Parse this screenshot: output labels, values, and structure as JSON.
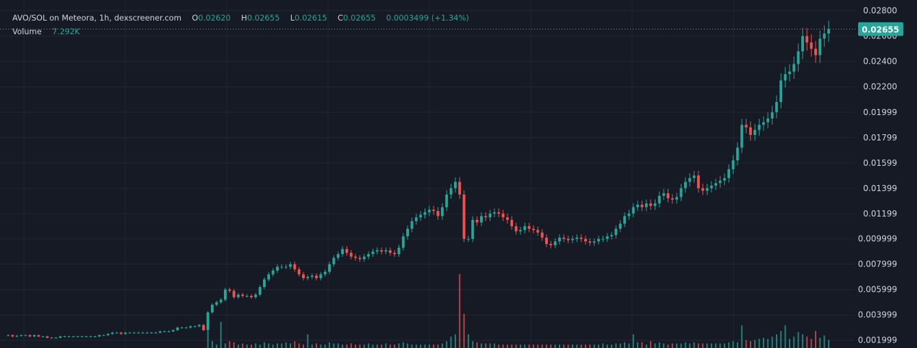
{
  "legend": {
    "symbol": "AVO/SOL on Meteora, 1h, dexscreener.com",
    "o_label": "O",
    "o_value": "0.02620",
    "h_label": "H",
    "h_value": "0.02655",
    "l_label": "L",
    "l_value": "0.02615",
    "c_label": "C",
    "c_value": "0.02655",
    "change": "0.0003499 (+1.34%)",
    "volume_label": "Volume",
    "volume_value": "7.292K"
  },
  "colors": {
    "background": "#161a25",
    "grid": "#232734",
    "up": "#26a69a",
    "down": "#ef5350",
    "text": "#d1d4dc",
    "axis_text": "#d1d4dc",
    "price_tag_bg": "#26a69a",
    "price_tag_text": "#ffffff"
  },
  "chart_data": {
    "type": "candlestick",
    "title": "AVO/SOL on Meteora, 1h, dexscreener.com",
    "y_ticks": [
      "0.02800",
      "0.02600",
      "0.02400",
      "0.02200",
      "0.01999",
      "0.01799",
      "0.01599",
      "0.01399",
      "0.01199",
      "0.009999",
      "0.007999",
      "0.005999",
      "0.003999",
      "0.001999"
    ],
    "y_range": [
      0.00139,
      0.02885
    ],
    "last_price": 0.02655,
    "last_price_label": "0.02655",
    "grid": true,
    "close_series": [
      0.0024,
      0.0023,
      0.00235,
      0.0024,
      0.0024,
      0.0023,
      0.0024,
      0.0023,
      0.0023,
      0.0022,
      0.0022,
      0.0022,
      0.0023,
      0.0023,
      0.0023,
      0.0023,
      0.0023,
      0.0023,
      0.0023,
      0.0023,
      0.0023,
      0.0024,
      0.0024,
      0.0025,
      0.0026,
      0.0026,
      0.0025,
      0.0026,
      0.0026,
      0.0026,
      0.0026,
      0.0026,
      0.0026,
      0.0026,
      0.0026,
      0.0027,
      0.0027,
      0.0027,
      0.0028,
      0.003,
      0.003,
      0.003,
      0.0031,
      0.0031,
      0.0032,
      0.0028,
      0.0042,
      0.0048,
      0.005,
      0.0052,
      0.006,
      0.0059,
      0.0054,
      0.0056,
      0.0055,
      0.0055,
      0.0054,
      0.0056,
      0.0062,
      0.0068,
      0.0072,
      0.0075,
      0.0078,
      0.0078,
      0.0078,
      0.008,
      0.0076,
      0.0072,
      0.0069,
      0.007,
      0.0071,
      0.0069,
      0.0072,
      0.0074,
      0.008,
      0.0085,
      0.0088,
      0.0092,
      0.0089,
      0.0086,
      0.0085,
      0.0084,
      0.0086,
      0.0088,
      0.009,
      0.0091,
      0.009,
      0.0091,
      0.0089,
      0.0088,
      0.0093,
      0.0102,
      0.0108,
      0.0114,
      0.0117,
      0.0119,
      0.0121,
      0.0123,
      0.0122,
      0.0118,
      0.0125,
      0.0135,
      0.014,
      0.0145,
      0.0135,
      0.01,
      0.01,
      0.0115,
      0.0113,
      0.0118,
      0.0117,
      0.012,
      0.0121,
      0.012,
      0.0117,
      0.0115,
      0.011,
      0.0106,
      0.0107,
      0.011,
      0.0108,
      0.0107,
      0.0105,
      0.0101,
      0.0096,
      0.0095,
      0.0098,
      0.0101,
      0.01,
      0.0099,
      0.01,
      0.0101,
      0.01,
      0.0098,
      0.0097,
      0.0098,
      0.01,
      0.01,
      0.0102,
      0.0103,
      0.0108,
      0.0112,
      0.0118,
      0.012,
      0.0125,
      0.0127,
      0.0125,
      0.0128,
      0.0126,
      0.0128,
      0.0134,
      0.0136,
      0.0132,
      0.0131,
      0.0133,
      0.014,
      0.0145,
      0.0148,
      0.015,
      0.014,
      0.0138,
      0.014,
      0.0142,
      0.0144,
      0.0146,
      0.0148,
      0.0155,
      0.0162,
      0.0172,
      0.019,
      0.0188,
      0.0182,
      0.0186,
      0.019,
      0.0192,
      0.0195,
      0.02,
      0.0208,
      0.0225,
      0.023,
      0.0232,
      0.0238,
      0.0248,
      0.026,
      0.0255,
      0.025,
      0.0245,
      0.0258,
      0.0262,
      0.02655
    ],
    "volume_series": [
      0,
      0,
      0,
      0,
      0,
      0,
      0,
      0,
      0,
      0,
      0,
      0,
      0,
      0,
      0,
      0,
      0,
      0,
      0,
      0,
      0,
      0,
      0,
      0,
      0,
      0,
      0,
      0,
      0,
      0,
      0,
      0,
      0,
      0,
      0,
      0,
      0,
      0,
      0,
      0,
      0,
      0,
      0,
      0,
      0,
      0,
      1.5,
      0.6,
      0.3,
      2.3,
      0.4,
      0.6,
      0.5,
      0.3,
      0.4,
      0.3,
      0.3,
      0.4,
      0.3,
      0.5,
      0.4,
      0.3,
      0.4,
      0.4,
      0.5,
      0.4,
      0.6,
      0.4,
      0.3,
      1.2,
      0.3,
      0.4,
      0.3,
      0.3,
      0.5,
      0.4,
      0.4,
      0.3,
      0.3,
      0.4,
      0.3,
      0.3,
      0.3,
      0.4,
      0.3,
      0.3,
      0.3,
      0.4,
      0.3,
      0.3,
      0.4,
      0.5,
      0.4,
      0.3,
      0.3,
      0.3,
      0.3,
      0.3,
      0.3,
      0.3,
      0.4,
      0.6,
      1.0,
      1.2,
      6.5,
      3.0,
      1.2,
      0.6,
      0.5,
      0.4,
      0.4,
      0.4,
      0.4,
      0.3,
      0.3,
      0.3,
      0.3,
      0.3,
      0.3,
      0.3,
      0.3,
      0.3,
      0.3,
      0.3,
      0.3,
      0.3,
      0.3,
      0.3,
      0.3,
      0.3,
      0.3,
      0.3,
      0.3,
      0.3,
      0.3,
      0.3,
      0.3,
      0.4,
      0.3,
      0.3,
      0.4,
      0.4,
      0.5,
      0.4,
      1.2,
      0.5,
      0.5,
      0.3,
      0.6,
      0.4,
      0.5,
      0.4,
      0.3,
      0.4,
      0.4,
      0.4,
      0.5,
      0.4,
      0.5,
      0.4,
      0.4,
      0.4,
      0.4,
      0.4,
      0.4,
      0.4,
      0.5,
      0.6,
      0.5,
      2.0,
      0.7,
      0.6,
      0.7,
      0.8,
      0.9,
      0.8,
      1.0,
      1.2,
      1.5,
      2.0,
      0.8,
      1.0,
      1.4,
      1.2,
      1.0,
      0.8,
      1.5,
      0.9,
      1.1,
      0.7
    ]
  }
}
